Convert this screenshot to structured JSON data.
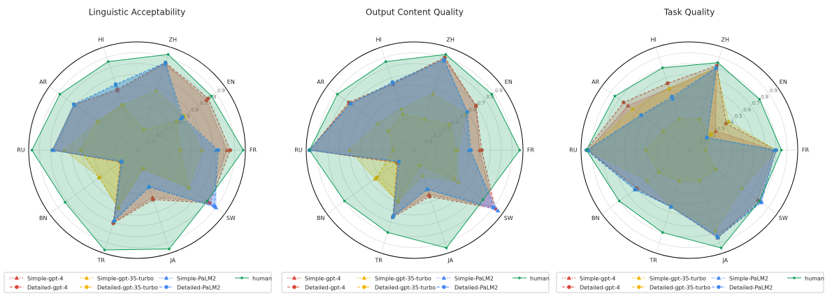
{
  "chart_data": [
    {
      "type": "radar",
      "title": "Linguistic Acceptability",
      "categories": [
        "FR",
        "EN",
        "ZH",
        "HI",
        "AR",
        "RU",
        "BN",
        "TR",
        "JA",
        "SW"
      ],
      "rlim": [
        0,
        1
      ],
      "rticks": [
        0.1,
        0.2,
        0.3,
        0.4,
        0.5,
        0.6,
        0.7,
        0.8,
        0.9
      ],
      "series": [
        {
          "name": "Simple-gpt-4",
          "color": "#db4437",
          "marker": "triangle",
          "linestyle": "dotted",
          "values": [
            0.83,
            0.79,
            0.84,
            0.58,
            0.71,
            0.77,
            0.18,
            0.7,
            0.46,
            0.81
          ]
        },
        {
          "name": "Detailed-gpt-4",
          "color": "#db4437",
          "marker": "circle",
          "linestyle": "dashed",
          "values": [
            0.86,
            0.81,
            0.85,
            0.59,
            0.72,
            0.78,
            0.19,
            0.71,
            0.48,
            0.83
          ]
        },
        {
          "name": "Simple-gpt-35-turbo",
          "color": "#f4b400",
          "marker": "triangle",
          "linestyle": "dotted",
          "values": [
            0.6,
            0.54,
            0.58,
            0.44,
            0.45,
            0.67,
            0.43,
            0.56,
            0.18,
            0.59
          ]
        },
        {
          "name": "Detailed-gpt-35-turbo",
          "color": "#f4b400",
          "marker": "circle",
          "linestyle": "dashed",
          "values": [
            0.4,
            0.45,
            0.2,
            0.44,
            0.45,
            0.52,
            0.43,
            0.56,
            0.18,
            0.59
          ]
        },
        {
          "name": "Simple-PaLM2",
          "color": "#4285f4",
          "marker": "triangle",
          "linestyle": "dotted",
          "values": [
            0.73,
            0.5,
            0.84,
            0.63,
            0.71,
            0.77,
            0.17,
            0.68,
            0.35,
            0.9
          ]
        },
        {
          "name": "Detailed-PaLM2",
          "color": "#4285f4",
          "marker": "circle",
          "linestyle": "dashed",
          "values": [
            0.75,
            0.52,
            0.85,
            0.64,
            0.72,
            0.78,
            0.18,
            0.69,
            0.36,
            0.88
          ]
        },
        {
          "name": "human",
          "color": "#0f9d58",
          "marker": "dot",
          "linestyle": "solid",
          "values": [
            0.98,
            0.85,
            0.93,
            0.86,
            0.88,
            0.97,
            0.82,
            0.97,
            0.96,
            0.8
          ]
        }
      ]
    },
    {
      "type": "radar",
      "title": "Output Content Quality",
      "categories": [
        "FR",
        "EN",
        "ZH",
        "HI",
        "AR",
        "RU",
        "BN",
        "TR",
        "JA",
        "SW"
      ],
      "rlim": [
        0,
        1
      ],
      "rticks": [
        0.1,
        0.2,
        0.3,
        0.4,
        0.5,
        0.6,
        0.7,
        0.8,
        0.9
      ],
      "series": [
        {
          "name": "Simple-gpt-4",
          "color": "#db4437",
          "marker": "triangle",
          "linestyle": "dotted",
          "values": [
            0.6,
            0.7,
            0.89,
            0.64,
            0.74,
            0.97,
            0.19,
            0.63,
            0.43,
            0.9
          ]
        },
        {
          "name": "Detailed-gpt-4",
          "color": "#db4437",
          "marker": "circle",
          "linestyle": "dashed",
          "values": [
            0.62,
            0.7,
            0.9,
            0.65,
            0.75,
            0.97,
            0.2,
            0.65,
            0.45,
            0.92
          ]
        },
        {
          "name": "Simple-gpt-35-turbo",
          "color": "#f4b400",
          "marker": "triangle",
          "linestyle": "dotted",
          "values": [
            0.4,
            0.58,
            0.55,
            0.4,
            0.42,
            0.6,
            0.45,
            0.5,
            0.25,
            0.5
          ]
        },
        {
          "name": "Detailed-gpt-35-turbo",
          "color": "#f4b400",
          "marker": "circle",
          "linestyle": "dashed",
          "values": [
            0.38,
            0.4,
            0.3,
            0.35,
            0.3,
            0.2,
            0.43,
            0.5,
            0.15,
            0.45
          ]
        },
        {
          "name": "Simple-PaLM2",
          "color": "#4285f4",
          "marker": "triangle",
          "linestyle": "dotted",
          "values": [
            0.5,
            0.6,
            0.87,
            0.65,
            0.73,
            0.97,
            0.18,
            0.65,
            0.38,
            0.95
          ]
        },
        {
          "name": "Detailed-PaLM2",
          "color": "#4285f4",
          "marker": "circle",
          "linestyle": "dashed",
          "values": [
            0.52,
            0.6,
            0.88,
            0.66,
            0.73,
            0.97,
            0.18,
            0.64,
            0.38,
            0.9
          ]
        },
        {
          "name": "human",
          "color": "#0f9d58",
          "marker": "dot",
          "linestyle": "solid",
          "values": [
            0.97,
            0.88,
            0.93,
            0.86,
            0.88,
            0.97,
            0.8,
            0.8,
            0.95,
            0.78
          ]
        }
      ]
    },
    {
      "type": "radar",
      "title": "Task Quality",
      "categories": [
        "FR",
        "EN",
        "ZH",
        "HI",
        "AR",
        "RU",
        "BN",
        "TR",
        "JA",
        "SW"
      ],
      "rlim": [
        0,
        1
      ],
      "rticks": [
        0.1,
        0.2,
        0.3,
        0.4,
        0.5,
        0.6,
        0.7,
        0.8,
        0.9
      ],
      "series": [
        {
          "name": "Simple-gpt-4",
          "color": "#db4437",
          "marker": "triangle",
          "linestyle": "dotted",
          "values": [
            0.78,
            0.3,
            0.8,
            0.6,
            0.7,
            0.93,
            0.6,
            0.55,
            0.85,
            0.78
          ]
        },
        {
          "name": "Detailed-gpt-4",
          "color": "#db4437",
          "marker": "circle",
          "linestyle": "dashed",
          "values": [
            0.8,
            0.42,
            0.82,
            0.65,
            0.75,
            0.95,
            0.6,
            0.55,
            0.85,
            0.8
          ]
        },
        {
          "name": "Simple-gpt-35-turbo",
          "color": "#f4b400",
          "marker": "triangle",
          "linestyle": "dotted",
          "values": [
            0.8,
            0.45,
            0.8,
            0.6,
            0.65,
            0.93,
            0.48,
            0.55,
            0.78,
            0.6
          ]
        },
        {
          "name": "Detailed-gpt-35-turbo",
          "color": "#f4b400",
          "marker": "circle",
          "linestyle": "dashed",
          "values": [
            0.15,
            0.25,
            0.3,
            0.3,
            0.3,
            0.4,
            0.35,
            0.3,
            0.3,
            0.3
          ]
        },
        {
          "name": "Simple-PaLM2",
          "color": "#4285f4",
          "marker": "triangle",
          "linestyle": "dotted",
          "values": [
            0.78,
            0.2,
            0.8,
            0.5,
            0.55,
            0.93,
            0.62,
            0.55,
            0.83,
            0.82
          ]
        },
        {
          "name": "Detailed-PaLM2",
          "color": "#4285f4",
          "marker": "circle",
          "linestyle": "dashed",
          "values": [
            0.8,
            0.2,
            0.8,
            0.52,
            0.55,
            0.95,
            0.62,
            0.55,
            0.85,
            0.82
          ]
        },
        {
          "name": "human",
          "color": "#0f9d58",
          "marker": "dot",
          "linestyle": "solid",
          "values": [
            0.85,
            0.8,
            0.85,
            0.8,
            0.85,
            0.95,
            0.8,
            0.8,
            0.95,
            0.8
          ]
        }
      ]
    }
  ]
}
